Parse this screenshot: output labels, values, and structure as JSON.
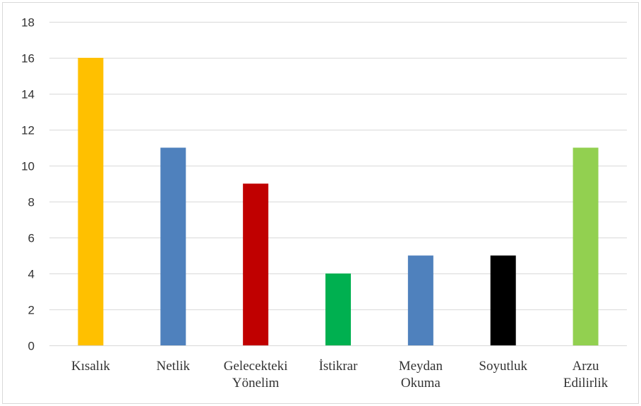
{
  "chart_data": {
    "type": "bar",
    "title": "",
    "xlabel": "",
    "ylabel": "",
    "ylim": [
      0,
      18
    ],
    "yticks": [
      0,
      2,
      4,
      6,
      8,
      10,
      12,
      14,
      16,
      18
    ],
    "grid": true,
    "legend": "none",
    "categories": [
      [
        "Kısalık"
      ],
      [
        "Netlik"
      ],
      [
        "Gelecekteki",
        "Yönelim"
      ],
      [
        "İstikrar"
      ],
      [
        "Meydan",
        "Okuma"
      ],
      [
        "Soyutluk"
      ],
      [
        "Arzu",
        "Edilirlik"
      ]
    ],
    "values": [
      16,
      11,
      9,
      4,
      5,
      5,
      11
    ],
    "colors": [
      "#ffc000",
      "#4f81bd",
      "#c00000",
      "#00b050",
      "#4f81bd",
      "#000000",
      "#92d050"
    ]
  }
}
